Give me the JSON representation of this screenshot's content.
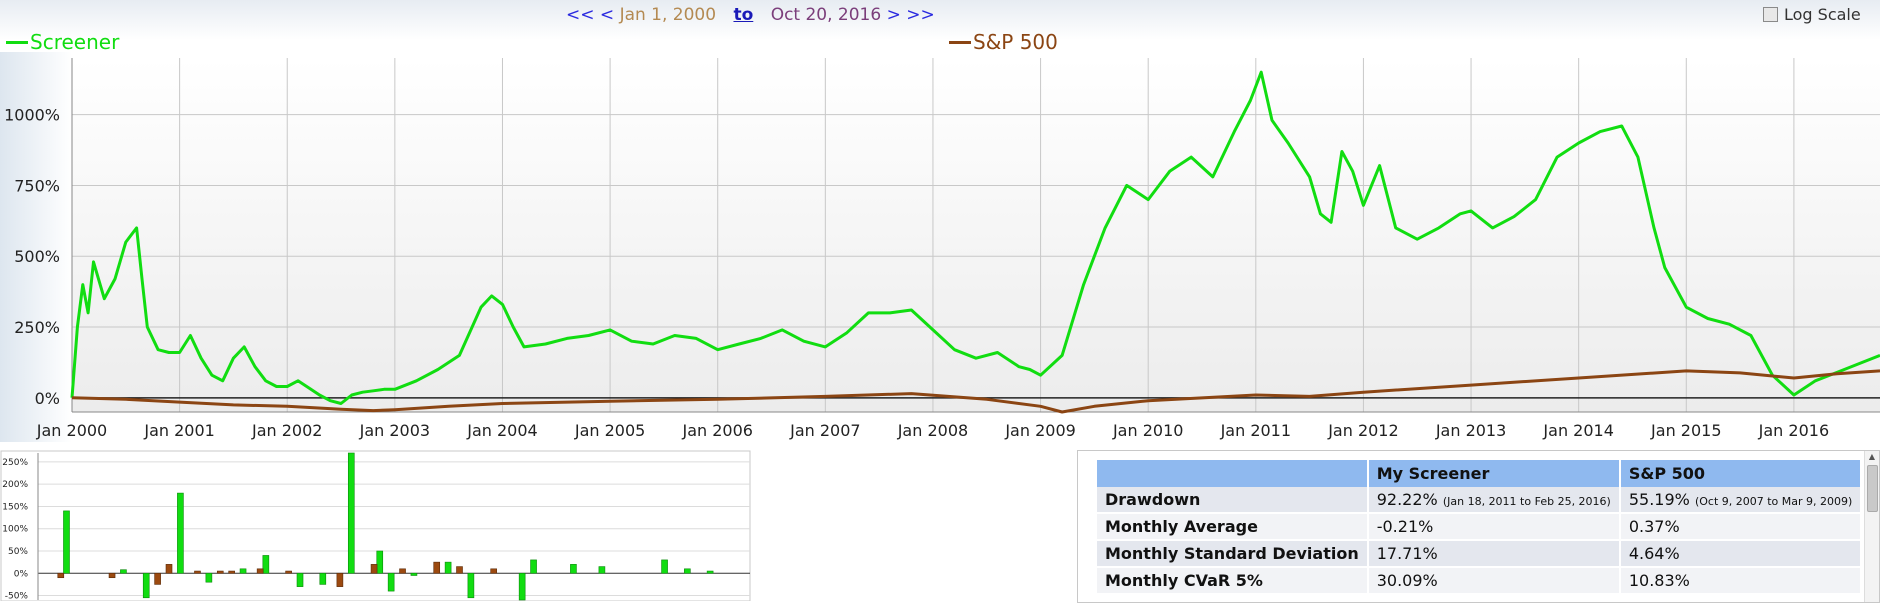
{
  "nav": {
    "first": "<<",
    "prev": "<",
    "start_date": "Jan 1, 2000",
    "to_label": "to",
    "end_date": "Oct 20, 2016",
    "next": ">",
    "last": ">>"
  },
  "log_scale": {
    "label": "Log Scale",
    "checked": false
  },
  "colors": {
    "screener": "#11dd11",
    "sp500": "#8b4513",
    "header_blue": "#8fb9ef"
  },
  "chart_data": [
    {
      "type": "line",
      "title": "",
      "xlabel": "",
      "ylabel": "",
      "x_ticks": [
        "Jan 2000",
        "Jan 2001",
        "Jan 2002",
        "Jan 2003",
        "Jan 2004",
        "Jan 2005",
        "Jan 2006",
        "Jan 2007",
        "Jan 2008",
        "Jan 2009",
        "Jan 2010",
        "Jan 2011",
        "Jan 2012",
        "Jan 2013",
        "Jan 2014",
        "Jan 2015",
        "Jan 2016"
      ],
      "y_ticks": [
        "0%",
        "250%",
        "500%",
        "750%",
        "1000%"
      ],
      "ylim": [
        -50,
        1200
      ],
      "xlim": [
        2000.0,
        2016.8
      ],
      "grid": true,
      "legend": "top",
      "series": [
        {
          "name": "Screener",
          "color": "#11dd11",
          "x": [
            2000.0,
            2000.05,
            2000.1,
            2000.15,
            2000.2,
            2000.3,
            2000.4,
            2000.5,
            2000.6,
            2000.65,
            2000.7,
            2000.8,
            2000.9,
            2001.0,
            2001.1,
            2001.2,
            2001.3,
            2001.4,
            2001.5,
            2001.6,
            2001.7,
            2001.8,
            2001.9,
            2002.0,
            2002.1,
            2002.2,
            2002.3,
            2002.4,
            2002.5,
            2002.6,
            2002.7,
            2002.8,
            2002.9,
            2003.0,
            2003.2,
            2003.4,
            2003.6,
            2003.8,
            2003.9,
            2004.0,
            2004.1,
            2004.2,
            2004.4,
            2004.6,
            2004.8,
            2005.0,
            2005.2,
            2005.4,
            2005.6,
            2005.8,
            2006.0,
            2006.2,
            2006.4,
            2006.6,
            2006.8,
            2007.0,
            2007.2,
            2007.4,
            2007.6,
            2007.8,
            2008.0,
            2008.2,
            2008.4,
            2008.6,
            2008.8,
            2008.9,
            2009.0,
            2009.2,
            2009.4,
            2009.6,
            2009.8,
            2010.0,
            2010.2,
            2010.4,
            2010.6,
            2010.8,
            2010.95,
            2011.05,
            2011.15,
            2011.3,
            2011.5,
            2011.6,
            2011.7,
            2011.8,
            2011.9,
            2012.0,
            2012.15,
            2012.3,
            2012.5,
            2012.7,
            2012.9,
            2013.0,
            2013.2,
            2013.4,
            2013.6,
            2013.8,
            2014.0,
            2014.2,
            2014.4,
            2014.55,
            2014.7,
            2014.8,
            2015.0,
            2015.2,
            2015.4,
            2015.6,
            2015.8,
            2016.0,
            2016.2,
            2016.4,
            2016.6,
            2016.8
          ],
          "y": [
            0,
            250,
            400,
            300,
            480,
            350,
            420,
            550,
            600,
            420,
            250,
            170,
            160,
            160,
            220,
            140,
            80,
            60,
            140,
            180,
            110,
            60,
            40,
            40,
            60,
            35,
            10,
            -10,
            -20,
            10,
            20,
            25,
            30,
            30,
            60,
            100,
            150,
            320,
            360,
            330,
            250,
            180,
            190,
            210,
            220,
            240,
            200,
            190,
            220,
            210,
            170,
            190,
            210,
            240,
            200,
            180,
            230,
            300,
            300,
            310,
            240,
            170,
            140,
            160,
            110,
            100,
            80,
            150,
            400,
            600,
            750,
            700,
            800,
            850,
            780,
            940,
            1050,
            1150,
            980,
            900,
            780,
            650,
            620,
            870,
            800,
            680,
            820,
            600,
            560,
            600,
            650,
            660,
            600,
            640,
            700,
            850,
            900,
            940,
            960,
            850,
            600,
            460,
            320,
            280,
            260,
            220,
            80,
            10,
            60,
            90,
            120,
            150
          ]
        },
        {
          "name": "S&P 500",
          "color": "#8b4513",
          "x": [
            2000.0,
            2000.5,
            2001.0,
            2001.5,
            2002.0,
            2002.5,
            2002.8,
            2003.0,
            2003.5,
            2004.0,
            2005.0,
            2006.0,
            2007.0,
            2007.8,
            2008.5,
            2009.0,
            2009.2,
            2009.5,
            2010.0,
            2011.0,
            2011.5,
            2012.0,
            2013.0,
            2014.0,
            2015.0,
            2015.5,
            2016.0,
            2016.4,
            2016.8
          ],
          "y": [
            0,
            -5,
            -15,
            -25,
            -30,
            -40,
            -45,
            -42,
            -30,
            -20,
            -12,
            -5,
            5,
            15,
            -5,
            -30,
            -50,
            -30,
            -10,
            10,
            5,
            20,
            45,
            70,
            95,
            88,
            70,
            85,
            95
          ]
        }
      ]
    },
    {
      "type": "bar",
      "title": "",
      "y_ticks": [
        "250%",
        "200%",
        "150%",
        "100%",
        "50%",
        "0%",
        "-50%"
      ],
      "ylim": [
        -60,
        270
      ],
      "series": [
        {
          "name": "My Screener",
          "color": "#11dd11",
          "x": [
            2000.5,
            2001.5,
            2001.9,
            2002.5,
            2003.0,
            2003.6,
            2004.0,
            2004.6,
            2005.0,
            2005.5,
            2006.0,
            2006.2,
            2006.6,
            2007.2,
            2007.6,
            2008.5,
            2008.7,
            2009.4,
            2009.9,
            2011.0,
            2011.4,
            2011.8
          ],
          "values": [
            140,
            8,
            -55,
            180,
            -20,
            10,
            40,
            -30,
            -25,
            270,
            50,
            -40,
            -5,
            25,
            -55,
            -60,
            30,
            20,
            15,
            30,
            10,
            5
          ]
        },
        {
          "name": "S&P 500",
          "color": "#9c4a10",
          "x": [
            2000.4,
            2001.3,
            2002.1,
            2002.3,
            2002.8,
            2003.2,
            2003.4,
            2003.9,
            2004.4,
            2005.3,
            2005.9,
            2006.4,
            2007.0,
            2007.4,
            2008.0
          ],
          "values": [
            -10,
            -10,
            -25,
            20,
            5,
            5,
            5,
            10,
            5,
            -30,
            20,
            10,
            25,
            15,
            10
          ]
        }
      ]
    }
  ],
  "stats": {
    "headers": [
      "",
      "My Screener",
      "S&P 500"
    ],
    "rows": [
      {
        "label": "Drawdown",
        "screener": "92.22%",
        "screener_note": "(Jan 18, 2011 to Feb 25, 2016)",
        "sp500": "55.19%",
        "sp500_note": "(Oct 9, 2007 to Mar 9, 2009)"
      },
      {
        "label": "Monthly Average",
        "screener": "-0.21%",
        "sp500": "0.37%"
      },
      {
        "label": "Monthly Standard Deviation",
        "screener": "17.71%",
        "sp500": "4.64%"
      },
      {
        "label": "Monthly CVaR 5%",
        "screener": "30.09%",
        "sp500": "10.83%"
      }
    ]
  }
}
